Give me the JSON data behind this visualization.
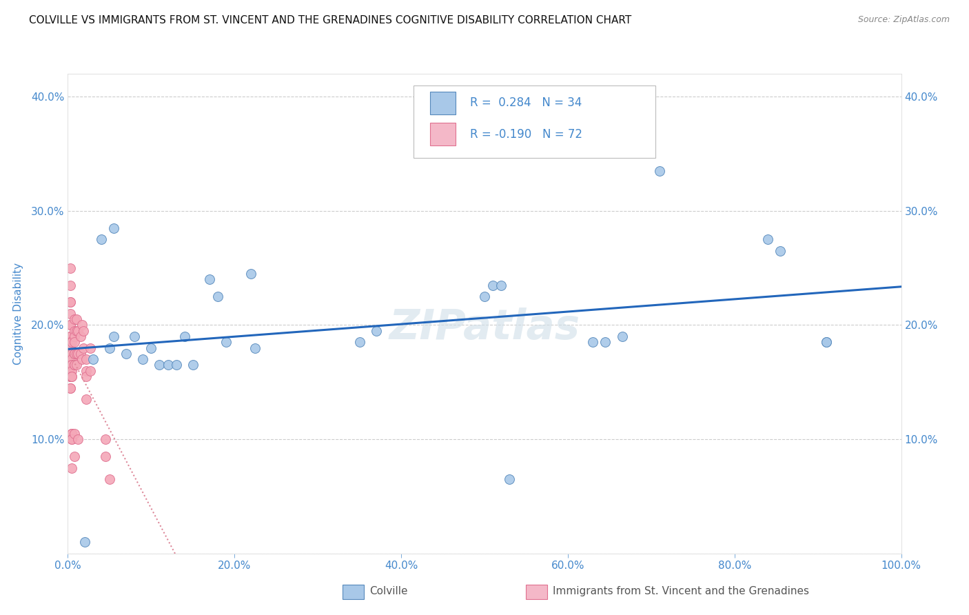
{
  "title": "COLVILLE VS IMMIGRANTS FROM ST. VINCENT AND THE GRENADINES COGNITIVE DISABILITY CORRELATION CHART",
  "source": "Source: ZipAtlas.com",
  "ylabel": "Cognitive Disability",
  "xlim": [
    0,
    1.0
  ],
  "ylim": [
    0,
    0.42
  ],
  "xticks": [
    0.0,
    0.2,
    0.4,
    0.6,
    0.8,
    1.0
  ],
  "xticklabels": [
    "0.0%",
    "20.0%",
    "40.0%",
    "60.0%",
    "80.0%",
    "100.0%"
  ],
  "yticks": [
    0.0,
    0.1,
    0.2,
    0.3,
    0.4
  ],
  "yticklabels": [
    "",
    "10.0%",
    "20.0%",
    "30.0%",
    "40.0%"
  ],
  "colville_color": "#a8c8e8",
  "immigrant_color": "#f4a8b8",
  "colville_edge": "#5588bb",
  "immigrant_edge": "#e07090",
  "trendline_colville_color": "#2266bb",
  "trendline_immigrant_color": "#dd8899",
  "legend_box_colville": "#a8c8e8",
  "legend_box_immigrant": "#f4b8c8",
  "R_colville": 0.284,
  "N_colville": 34,
  "R_immigrant": -0.19,
  "N_immigrant": 72,
  "background": "#ffffff",
  "grid_color": "#cccccc",
  "tick_color": "#4488cc",
  "colville_x": [
    0.02,
    0.04,
    0.055,
    0.055,
    0.07,
    0.08,
    0.09,
    0.1,
    0.11,
    0.12,
    0.13,
    0.14,
    0.15,
    0.17,
    0.18,
    0.19,
    0.35,
    0.37,
    0.5,
    0.51,
    0.52,
    0.63,
    0.645,
    0.71,
    0.84,
    0.855,
    0.91,
    0.03,
    0.05,
    0.22,
    0.225,
    0.53,
    0.665,
    0.91
  ],
  "colville_y": [
    0.01,
    0.275,
    0.285,
    0.19,
    0.175,
    0.19,
    0.17,
    0.18,
    0.165,
    0.165,
    0.165,
    0.19,
    0.165,
    0.24,
    0.225,
    0.185,
    0.185,
    0.195,
    0.225,
    0.235,
    0.235,
    0.185,
    0.185,
    0.335,
    0.275,
    0.265,
    0.185,
    0.17,
    0.18,
    0.245,
    0.18,
    0.065,
    0.19,
    0.185
  ],
  "immigrant_x": [
    0.003,
    0.003,
    0.003,
    0.003,
    0.003,
    0.003,
    0.003,
    0.003,
    0.003,
    0.003,
    0.003,
    0.003,
    0.003,
    0.003,
    0.003,
    0.003,
    0.003,
    0.003,
    0.003,
    0.003,
    0.003,
    0.003,
    0.003,
    0.003,
    0.003,
    0.005,
    0.005,
    0.005,
    0.005,
    0.005,
    0.005,
    0.005,
    0.005,
    0.005,
    0.005,
    0.005,
    0.005,
    0.005,
    0.005,
    0.005,
    0.008,
    0.008,
    0.008,
    0.008,
    0.008,
    0.008,
    0.008,
    0.008,
    0.008,
    0.008,
    0.01,
    0.01,
    0.01,
    0.01,
    0.012,
    0.012,
    0.012,
    0.015,
    0.015,
    0.017,
    0.017,
    0.019,
    0.019,
    0.022,
    0.022,
    0.022,
    0.022,
    0.027,
    0.027,
    0.045,
    0.045,
    0.05
  ],
  "immigrant_y": [
    0.25,
    0.235,
    0.22,
    0.22,
    0.21,
    0.2,
    0.2,
    0.19,
    0.19,
    0.19,
    0.185,
    0.18,
    0.18,
    0.175,
    0.175,
    0.17,
    0.17,
    0.165,
    0.165,
    0.16,
    0.155,
    0.155,
    0.155,
    0.145,
    0.145,
    0.185,
    0.175,
    0.175,
    0.17,
    0.165,
    0.165,
    0.16,
    0.155,
    0.155,
    0.105,
    0.105,
    0.105,
    0.1,
    0.1,
    0.075,
    0.205,
    0.195,
    0.19,
    0.185,
    0.175,
    0.175,
    0.165,
    0.165,
    0.105,
    0.085,
    0.205,
    0.195,
    0.175,
    0.165,
    0.195,
    0.175,
    0.1,
    0.19,
    0.175,
    0.2,
    0.17,
    0.195,
    0.18,
    0.17,
    0.16,
    0.155,
    0.135,
    0.18,
    0.16,
    0.1,
    0.085,
    0.065
  ]
}
